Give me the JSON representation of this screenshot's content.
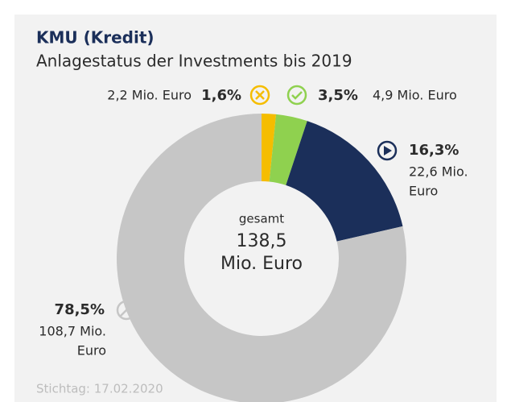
{
  "chart_data": {
    "type": "donut",
    "title": "KMU (Kredit)",
    "subtitle": "Anlagestatus der Investments bis 2019",
    "categories": [
      null,
      null,
      null,
      null
    ],
    "values": [
      1.6,
      3.5,
      16.3,
      78.5
    ],
    "value_labels": [
      "1,6%",
      "3,5%",
      "16,3%",
      "78,5%"
    ],
    "amount_labels": [
      [
        "2,2 Mio. Euro"
      ],
      [
        "4,9 Mio. Euro"
      ],
      [
        "22,6 Mio.",
        "Euro"
      ],
      [
        "108,7 Mio.",
        "Euro"
      ]
    ],
    "colors": [
      "#f5bd00",
      "#8fd14f",
      "#1b2f5a",
      "#c6c6c6"
    ],
    "center_label": [
      "gesamt",
      "138,5",
      "Mio. Euro"
    ],
    "footnote": "Stichtag: 17.02.2020"
  }
}
